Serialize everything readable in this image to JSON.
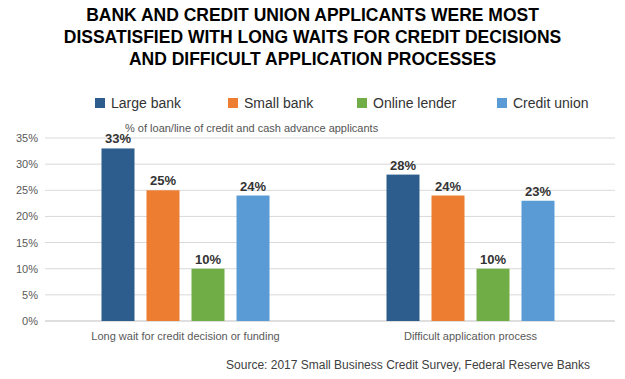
{
  "chart_data": {
    "type": "bar",
    "title": "BANK AND CREDIT UNION APPLICANTS WERE MOST DISSATISFIED WITH LONG WAITS FOR CREDIT DECISIONS AND DIFFICULT APPLICATION PROCESSES",
    "subtitle": "% of loan/line of credit and cash advance applicants",
    "source": "Source: 2017 Small Business Credit Survey, Federal Reserve Banks",
    "categories": [
      "Long wait for credit decision or funding",
      "Difficult application process"
    ],
    "series": [
      {
        "name": "Large bank",
        "color": "#2d5d8c",
        "values": [
          33,
          28
        ],
        "value_labels": [
          "33%",
          "28%"
        ]
      },
      {
        "name": "Small bank",
        "color": "#ed7d31",
        "values": [
          25,
          24
        ],
        "value_labels": [
          "25%",
          "24%"
        ]
      },
      {
        "name": "Online lender",
        "color": "#70ad47",
        "values": [
          10,
          10
        ],
        "value_labels": [
          "10%",
          "10%"
        ]
      },
      {
        "name": "Credit union",
        "color": "#5b9bd5",
        "values": [
          24,
          23
        ],
        "value_labels": [
          "24%",
          "23%"
        ]
      }
    ],
    "ylim": [
      0,
      35
    ],
    "yticks": [
      {
        "value": 0,
        "label": "0%"
      },
      {
        "value": 5,
        "label": "5%"
      },
      {
        "value": 10,
        "label": "10%"
      },
      {
        "value": 15,
        "label": "15%"
      },
      {
        "value": 20,
        "label": "20%"
      },
      {
        "value": 25,
        "label": "25%"
      },
      {
        "value": 30,
        "label": "30%"
      },
      {
        "value": 35,
        "label": "35%"
      }
    ],
    "grid": true,
    "legend": "top",
    "data_labels": true
  }
}
